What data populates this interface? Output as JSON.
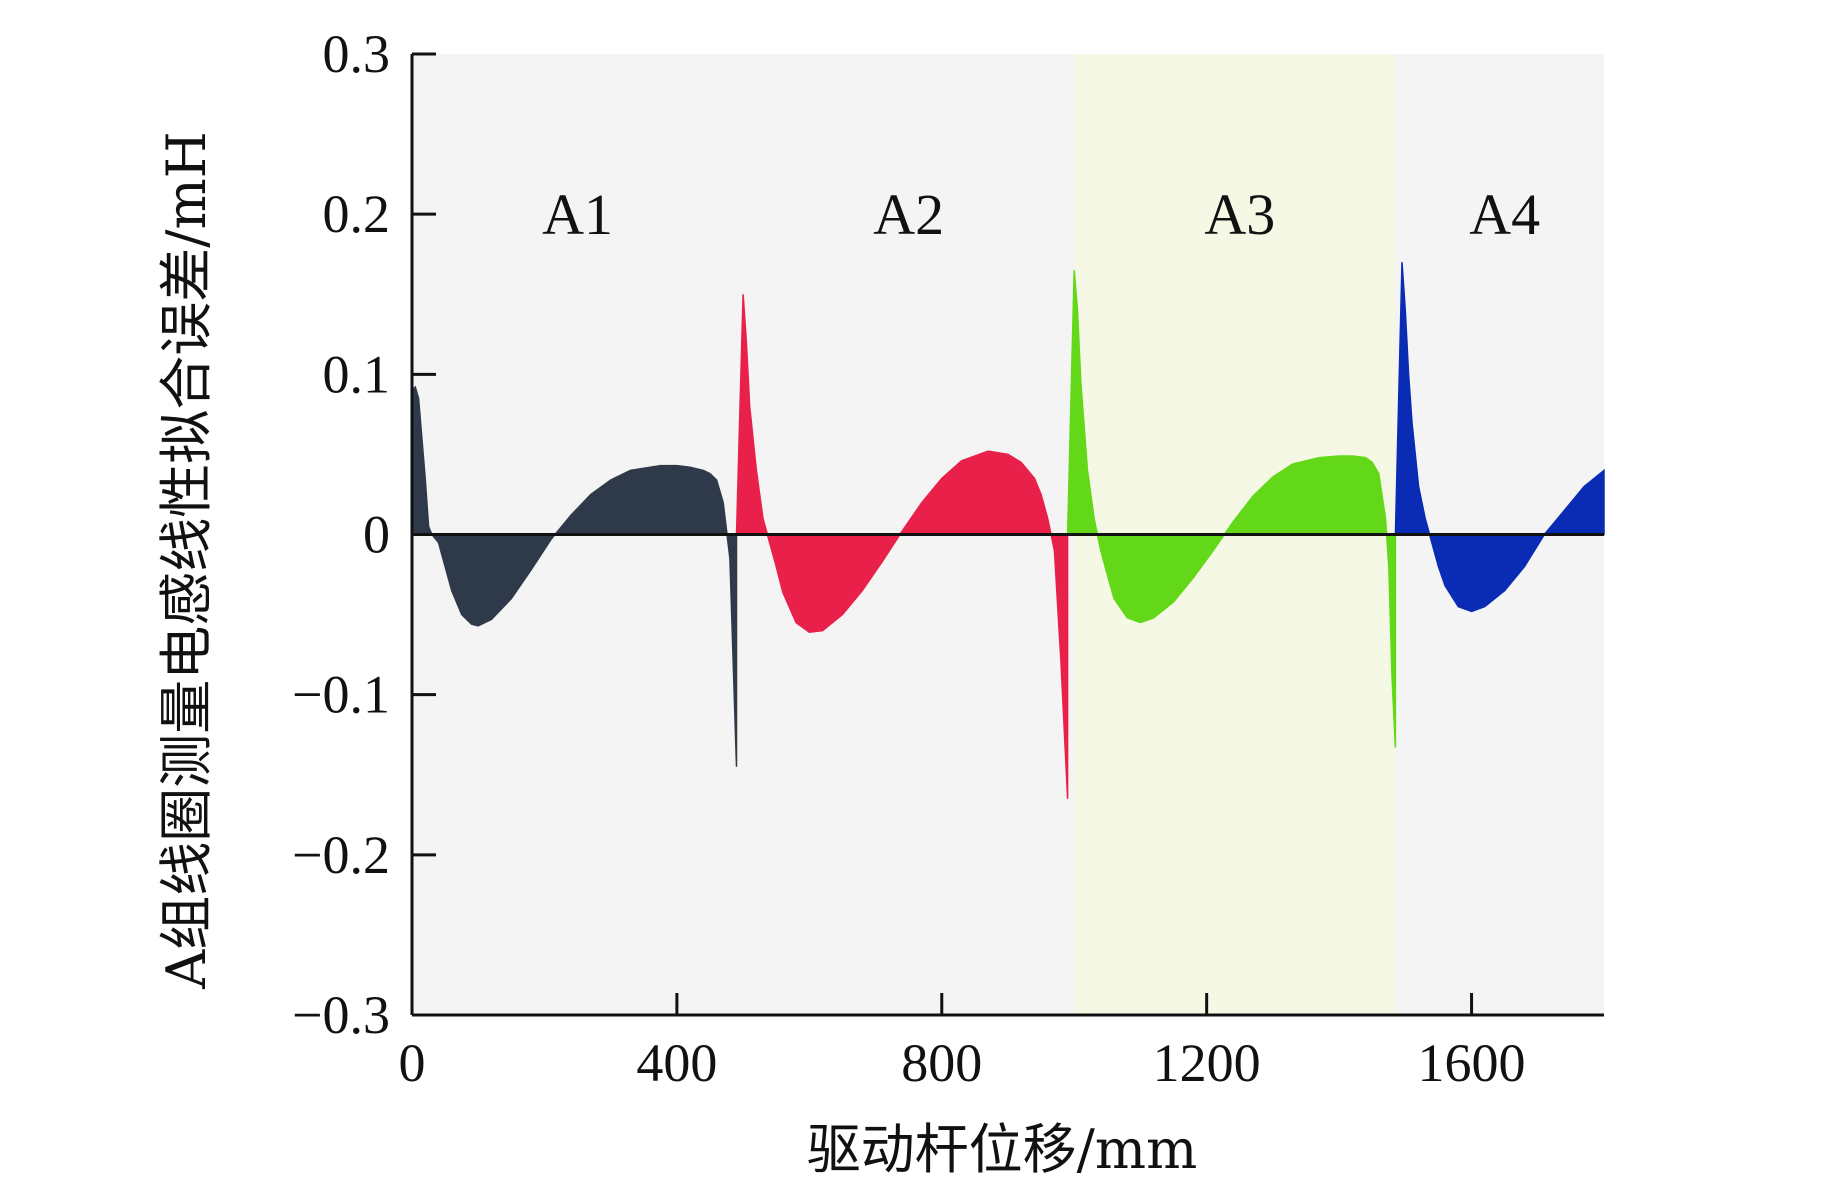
{
  "chart_data": {
    "type": "area",
    "xlabel": "驱动杆位移/mm",
    "ylabel": "A组线圈测量电感线性拟合误差/mH",
    "xlim": [
      0,
      1800
    ],
    "ylim": [
      -0.3,
      0.3
    ],
    "x_ticks": [
      0,
      400,
      800,
      1200,
      1600
    ],
    "y_ticks": [
      0.3,
      0.2,
      0.1,
      0,
      -0.1,
      -0.2,
      -0.3
    ],
    "y_tick_labels": [
      "0.3",
      "0.2",
      "0.1",
      "0",
      "−0.1",
      "−0.2",
      "−0.3"
    ],
    "grid": false,
    "legend": "none",
    "background": {
      "default_color": "#f4f4f4",
      "highlight": {
        "x_range": [
          1000,
          1485
        ],
        "color": "#f6f8e6"
      }
    },
    "region_labels": [
      {
        "text": "A1",
        "x": 250,
        "y": 0.2
      },
      {
        "text": "A2",
        "x": 750,
        "y": 0.2
      },
      {
        "text": "A3",
        "x": 1250,
        "y": 0.2
      },
      {
        "text": "A4",
        "x": 1650,
        "y": 0.2
      }
    ],
    "series": [
      {
        "label": "A1",
        "color": "#2e3a4a",
        "x": [
          0,
          5,
          10,
          15,
          20,
          25,
          30,
          40,
          50,
          60,
          75,
          90,
          100,
          120,
          150,
          180,
          210,
          240,
          270,
          300,
          330,
          360,
          375,
          400,
          420,
          440,
          450,
          460,
          470,
          480,
          490
        ],
        "y": [
          0.09,
          0.092,
          0.085,
          0.06,
          0.035,
          0.005,
          0.0,
          -0.005,
          -0.02,
          -0.035,
          -0.05,
          -0.056,
          -0.057,
          -0.053,
          -0.04,
          -0.022,
          -0.003,
          0.012,
          0.025,
          0.034,
          0.04,
          0.042,
          0.043,
          0.043,
          0.042,
          0.04,
          0.038,
          0.034,
          0.02,
          -0.015,
          -0.145
        ]
      },
      {
        "label": "A2",
        "color": "#e8204a",
        "x": [
          490,
          500,
          505,
          510,
          520,
          530,
          540,
          550,
          560,
          580,
          600,
          620,
          650,
          680,
          710,
          740,
          770,
          800,
          830,
          870,
          900,
          920,
          940,
          950,
          960,
          970,
          980,
          990
        ],
        "y": [
          0.0,
          0.15,
          0.12,
          0.08,
          0.04,
          0.01,
          -0.005,
          -0.02,
          -0.036,
          -0.055,
          -0.061,
          -0.06,
          -0.05,
          -0.035,
          -0.017,
          0.002,
          0.02,
          0.035,
          0.046,
          0.052,
          0.05,
          0.045,
          0.035,
          0.025,
          0.01,
          -0.01,
          -0.08,
          -0.165
        ]
      },
      {
        "label": "A3",
        "color": "#62d818",
        "x": [
          990,
          1000,
          1005,
          1010,
          1020,
          1030,
          1040,
          1050,
          1060,
          1080,
          1100,
          1120,
          1150,
          1180,
          1210,
          1240,
          1270,
          1300,
          1330,
          1370,
          1400,
          1420,
          1440,
          1450,
          1460,
          1470,
          1475,
          1480,
          1485
        ],
        "y": [
          0.0,
          0.165,
          0.14,
          0.095,
          0.04,
          0.01,
          -0.01,
          -0.025,
          -0.04,
          -0.052,
          -0.055,
          -0.052,
          -0.042,
          -0.027,
          -0.01,
          0.008,
          0.024,
          0.036,
          0.044,
          0.048,
          0.049,
          0.049,
          0.048,
          0.045,
          0.038,
          0.01,
          -0.02,
          -0.09,
          -0.133
        ]
      },
      {
        "label": "A4",
        "color": "#0a2bb4",
        "x": [
          1485,
          1495,
          1500,
          1505,
          1510,
          1520,
          1530,
          1540,
          1550,
          1560,
          1580,
          1600,
          1620,
          1650,
          1680,
          1710,
          1740,
          1770,
          1800
        ],
        "y": [
          0.0,
          0.17,
          0.14,
          0.1,
          0.07,
          0.03,
          0.01,
          -0.005,
          -0.02,
          -0.032,
          -0.045,
          -0.048,
          -0.045,
          -0.035,
          -0.02,
          0.0,
          0.015,
          0.03,
          0.04
        ]
      }
    ]
  }
}
